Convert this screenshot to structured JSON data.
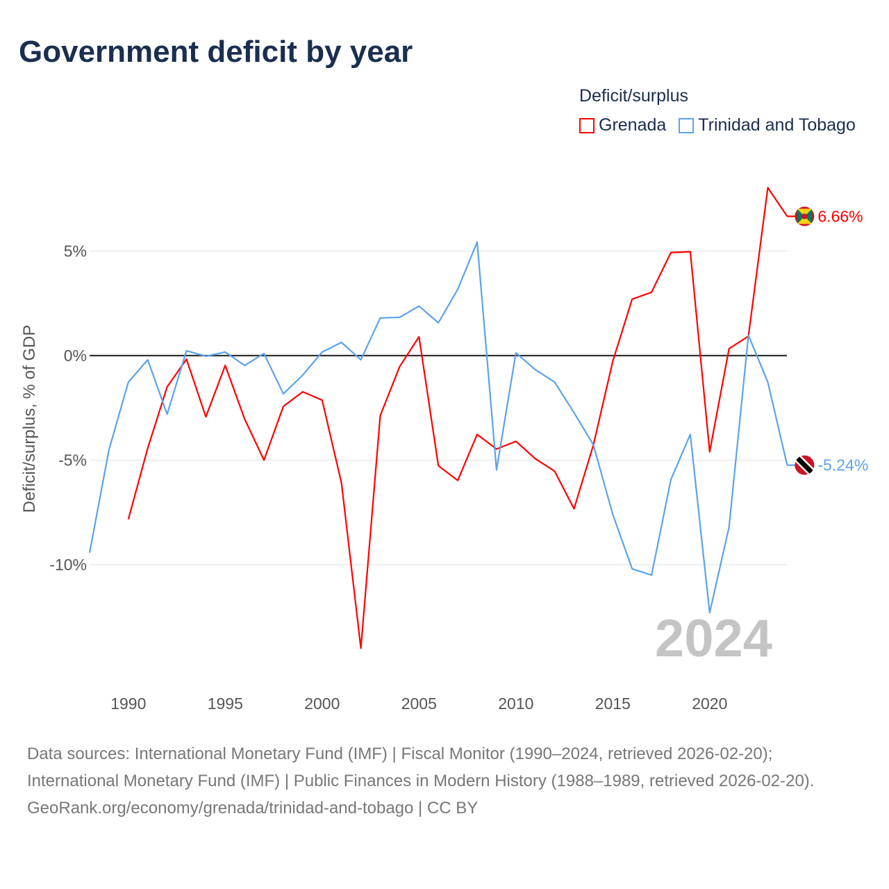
{
  "title": "Government deficit by year",
  "legend": {
    "title": "Deficit/surplus",
    "items": [
      {
        "label": "Grenada",
        "color": "#ff0000"
      },
      {
        "label": "Trinidad and Tobago",
        "color": "#5ba3ea"
      }
    ]
  },
  "year_watermark": "2024",
  "footer": {
    "sources": "Data sources: International Monetary Fund (IMF) | Fiscal Monitor (1990–2024, retrieved 2026-02-20); International Monetary Fund (IMF) | Public Finances in Modern History (1988–1989, retrieved 2026-02-20).",
    "link": "GeoRank.org/economy/grenada/trinidad-and-tobago | CC BY"
  },
  "chart_data": {
    "type": "line",
    "title": "Government deficit by year",
    "xlabel": "",
    "ylabel": "Deficit/surplus, % of GDP",
    "xlim": [
      1988,
      2024
    ],
    "ylim": [
      -16,
      9
    ],
    "x_ticks": [
      1990,
      1995,
      2000,
      2005,
      2010,
      2015,
      2020
    ],
    "x_tick_labels": [
      "1990",
      "1995",
      "2000",
      "2005",
      "2010",
      "2015",
      "2020"
    ],
    "y_ticks": [
      5,
      0,
      -5,
      -10
    ],
    "y_tick_labels": [
      "5%",
      "0%",
      "-5%",
      "-10%"
    ],
    "legend_position": "top-right",
    "series": [
      {
        "name": "Grenada",
        "color": "#ff0000",
        "end_label": "6.66%",
        "start": 1990,
        "values": [
          -7.83,
          -4.43,
          -1.5,
          -0.17,
          -2.93,
          -0.47,
          -3.03,
          -5.0,
          -2.43,
          -1.73,
          -2.13,
          -6.1,
          -14.0,
          -2.87,
          -0.53,
          0.9,
          -5.27,
          -5.97,
          -3.77,
          -4.47,
          -4.1,
          -4.93,
          -5.53,
          -7.33,
          -4.27,
          -0.27,
          2.7,
          3.03,
          4.93,
          4.97,
          -4.6,
          0.33,
          0.93,
          8.03,
          6.66
        ]
      },
      {
        "name": "Trinidad and Tobago",
        "color": "#5ba3ea",
        "end_label": "-5.24%",
        "start": 1988,
        "values": [
          -9.43,
          -4.5,
          -1.27,
          -0.2,
          -2.8,
          0.23,
          -0.03,
          0.17,
          -0.47,
          0.1,
          -1.83,
          -0.93,
          0.17,
          0.63,
          -0.2,
          1.8,
          1.83,
          2.37,
          1.57,
          3.17,
          5.43,
          -5.47,
          0.13,
          -0.67,
          -1.27,
          -2.73,
          -4.27,
          -7.6,
          -10.2,
          -10.5,
          -5.93,
          -3.77,
          -12.3,
          -8.2,
          0.97,
          -1.27,
          -5.24
        ]
      }
    ]
  }
}
